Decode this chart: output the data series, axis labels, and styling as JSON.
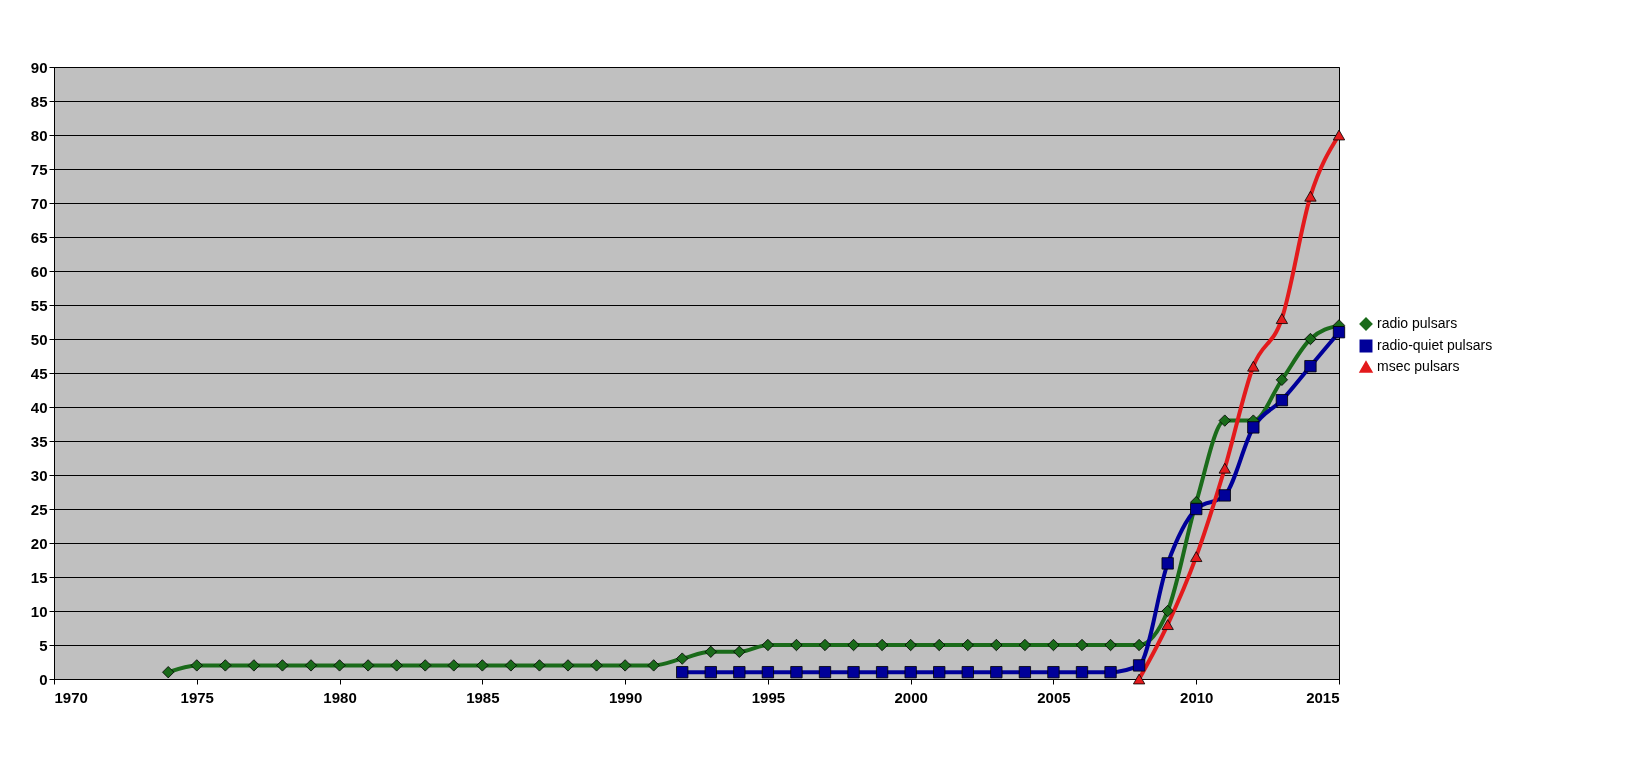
{
  "chart_data": {
    "type": "line",
    "xlim": [
      1970,
      2015
    ],
    "xticks": [
      1970,
      1975,
      1980,
      1985,
      1990,
      1995,
      2000,
      2005,
      2010,
      2015
    ],
    "ylim": [
      0,
      90
    ],
    "yticks": [
      0,
      5,
      10,
      15,
      20,
      25,
      30,
      35,
      40,
      45,
      50,
      55,
      60,
      65,
      70,
      75,
      80,
      85,
      90
    ],
    "grid": "y",
    "legend": "right",
    "line_style": "solid",
    "series": [
      {
        "name": "radio pulsars",
        "color": "#1a6b1a",
        "marker": "diamond",
        "x": [
          1974,
          1975,
          1976,
          1977,
          1978,
          1979,
          1980,
          1981,
          1982,
          1983,
          1984,
          1985,
          1986,
          1987,
          1988,
          1989,
          1990,
          1991,
          1992,
          1993,
          1994,
          1995,
          1996,
          1997,
          1998,
          1999,
          2000,
          2001,
          2002,
          2003,
          2004,
          2005,
          2006,
          2007,
          2008,
          2009,
          2010,
          2011,
          2012,
          2013,
          2014,
          2015
        ],
        "values": [
          1,
          2,
          2,
          2,
          2,
          2,
          2,
          2,
          2,
          2,
          2,
          2,
          2,
          2,
          2,
          2,
          2,
          2,
          3,
          4,
          4,
          5,
          5,
          5,
          5,
          5,
          5,
          5,
          5,
          5,
          5,
          5,
          5,
          5,
          5,
          10,
          26,
          38,
          38,
          44,
          50,
          52
        ]
      },
      {
        "name": "radio-quiet pulsars",
        "color": "#000099",
        "marker": "square",
        "x": [
          1992,
          1993,
          1994,
          1995,
          1996,
          1997,
          1998,
          1999,
          2000,
          2001,
          2002,
          2003,
          2004,
          2005,
          2006,
          2007,
          2008,
          2009,
          2010,
          2011,
          2012,
          2013,
          2014,
          2015
        ],
        "values": [
          1,
          1,
          1,
          1,
          1,
          1,
          1,
          1,
          1,
          1,
          1,
          1,
          1,
          1,
          1,
          1,
          2,
          17,
          25,
          27,
          37,
          41,
          46,
          51
        ]
      },
      {
        "name": "msec pulsars",
        "color": "#e31a1c",
        "marker": "triangle",
        "x": [
          2008,
          2009,
          2010,
          2011,
          2012,
          2013,
          2014,
          2015
        ],
        "values": [
          0,
          8,
          18,
          31,
          46,
          53,
          71,
          80
        ]
      }
    ]
  }
}
